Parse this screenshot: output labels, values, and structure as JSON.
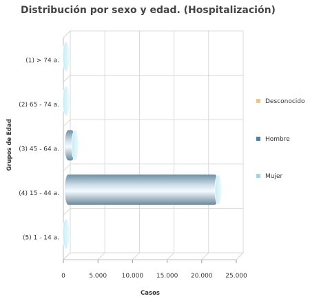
{
  "chart_data": {
    "type": "bar",
    "orientation": "horizontal",
    "title": "Distribución por sexo y edad. (Hospitalización)",
    "xlabel": "Casos",
    "ylabel": "Grupos de Edad",
    "categories": [
      "(1) > 74 a.",
      "(2) 65 - 74 a.",
      "(3) 45 - 64 a.",
      "(4) 15 - 44 a.",
      "(5) 1 - 14 a."
    ],
    "series": [
      {
        "name": "Desconocido",
        "color": "#e8c98a",
        "values": [
          0,
          0,
          0,
          0,
          0
        ]
      },
      {
        "name": "Hombre",
        "color": "#4f81a8",
        "values": [
          0,
          0,
          0,
          0,
          0
        ]
      },
      {
        "name": "Mujer",
        "color": "#a8d0e8",
        "values": [
          300,
          400,
          1700,
          22400,
          100
        ]
      }
    ],
    "xlim": [
      0,
      25000
    ],
    "xticks": [
      "0",
      "5.000",
      "10.000",
      "15.000",
      "20.000",
      "25.000"
    ],
    "xtick_values": [
      0,
      5000,
      10000,
      15000,
      20000,
      25000
    ],
    "stacked": true,
    "style": "3d-cylinder",
    "grid": true,
    "legend_position": "right"
  }
}
